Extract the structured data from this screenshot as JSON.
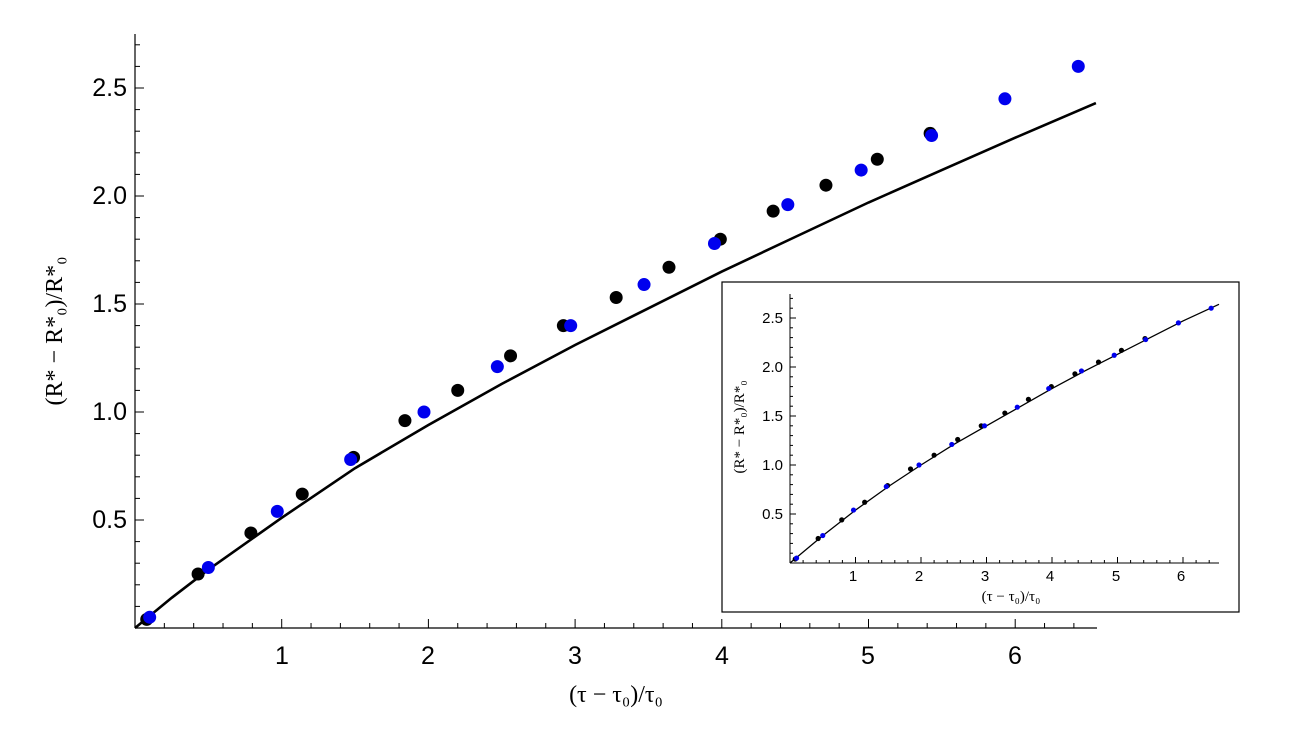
{
  "chart_data": [
    {
      "type": "scatter",
      "title": "",
      "xlabel": "(τ − τ₀)/τ₀",
      "ylabel": "(R* − R*₀)/R*₀",
      "xlim": [
        0,
        6.55
      ],
      "ylim": [
        0,
        2.75
      ],
      "x_ticks": [
        "1",
        "2",
        "3",
        "4",
        "5",
        "6"
      ],
      "y_ticks": [
        "0.5",
        "1.0",
        "1.5",
        "2.0",
        "2.5"
      ],
      "grid": false,
      "series": [
        {
          "color": "#0000ee",
          "points": [
            [
              0.1,
              0.05
            ],
            [
              0.5,
              0.28
            ],
            [
              0.97,
              0.54
            ],
            [
              1.47,
              0.78
            ],
            [
              1.97,
              1.0
            ],
            [
              2.47,
              1.21
            ],
            [
              2.97,
              1.4
            ],
            [
              3.47,
              1.59
            ],
            [
              3.95,
              1.78
            ],
            [
              4.45,
              1.96
            ],
            [
              4.95,
              2.12
            ],
            [
              5.43,
              2.28
            ],
            [
              5.93,
              2.45
            ],
            [
              6.43,
              2.6
            ]
          ]
        },
        {
          "color": "#000000",
          "points": [
            [
              0.08,
              0.04
            ],
            [
              0.43,
              0.25
            ],
            [
              0.79,
              0.44
            ],
            [
              1.14,
              0.62
            ],
            [
              1.49,
              0.79
            ],
            [
              1.84,
              0.96
            ],
            [
              2.2,
              1.1
            ],
            [
              2.56,
              1.26
            ],
            [
              2.92,
              1.4
            ],
            [
              3.28,
              1.53
            ],
            [
              3.64,
              1.67
            ],
            [
              3.99,
              1.8
            ],
            [
              4.35,
              1.93
            ],
            [
              4.71,
              2.05
            ],
            [
              5.06,
              2.17
            ],
            [
              5.42,
              2.29
            ]
          ]
        },
        {
          "kind": "fit-curve",
          "color": "#000000",
          "points": [
            [
              0,
              0
            ],
            [
              0.25,
              0.14
            ],
            [
              0.5,
              0.27
            ],
            [
              1,
              0.51
            ],
            [
              1.5,
              0.74
            ],
            [
              2,
              0.94
            ],
            [
              2.5,
              1.13
            ],
            [
              3,
              1.31
            ],
            [
              3.5,
              1.48
            ],
            [
              4,
              1.65
            ],
            [
              4.5,
              1.81
            ],
            [
              5,
              1.97
            ],
            [
              5.5,
              2.12
            ],
            [
              6,
              2.27
            ],
            [
              6.55,
              2.43
            ]
          ]
        }
      ]
    },
    {
      "type": "scatter",
      "title": "",
      "xlabel": "(τ − τ₀)/τ₀",
      "ylabel": "(R* − R*₀)/R*₀",
      "xlim": [
        0,
        6.55
      ],
      "ylim": [
        0,
        2.75
      ],
      "x_ticks": [
        "1",
        "2",
        "3",
        "4",
        "5",
        "6"
      ],
      "y_ticks": [
        "0.5",
        "1.0",
        "1.5",
        "2.0",
        "2.5"
      ],
      "grid": false,
      "series": [
        {
          "color": "#0000ee",
          "points": [
            [
              0.1,
              0.05
            ],
            [
              0.5,
              0.28
            ],
            [
              0.97,
              0.54
            ],
            [
              1.47,
              0.78
            ],
            [
              1.97,
              1.0
            ],
            [
              2.47,
              1.21
            ],
            [
              2.97,
              1.4
            ],
            [
              3.47,
              1.59
            ],
            [
              3.95,
              1.78
            ],
            [
              4.45,
              1.96
            ],
            [
              4.95,
              2.12
            ],
            [
              5.43,
              2.28
            ],
            [
              5.93,
              2.45
            ],
            [
              6.43,
              2.6
            ]
          ]
        },
        {
          "color": "#000000",
          "points": [
            [
              0.08,
              0.04
            ],
            [
              0.43,
              0.25
            ],
            [
              0.79,
              0.44
            ],
            [
              1.14,
              0.62
            ],
            [
              1.49,
              0.79
            ],
            [
              1.84,
              0.96
            ],
            [
              2.2,
              1.1
            ],
            [
              2.56,
              1.26
            ],
            [
              2.92,
              1.4
            ],
            [
              3.28,
              1.53
            ],
            [
              3.64,
              1.67
            ],
            [
              3.99,
              1.8
            ],
            [
              4.35,
              1.93
            ],
            [
              4.71,
              2.05
            ],
            [
              5.06,
              2.17
            ],
            [
              5.42,
              2.29
            ]
          ]
        },
        {
          "kind": "fit-curve",
          "color": "#000000",
          "points": [
            [
              0,
              0
            ],
            [
              0.5,
              0.28
            ],
            [
              1,
              0.54
            ],
            [
              1.5,
              0.78
            ],
            [
              2,
              1.0
            ],
            [
              2.5,
              1.21
            ],
            [
              3,
              1.4
            ],
            [
              3.5,
              1.59
            ],
            [
              4,
              1.78
            ],
            [
              4.5,
              1.96
            ],
            [
              5,
              2.13
            ],
            [
              5.5,
              2.3
            ],
            [
              6,
              2.47
            ],
            [
              6.55,
              2.64
            ]
          ]
        }
      ]
    }
  ]
}
